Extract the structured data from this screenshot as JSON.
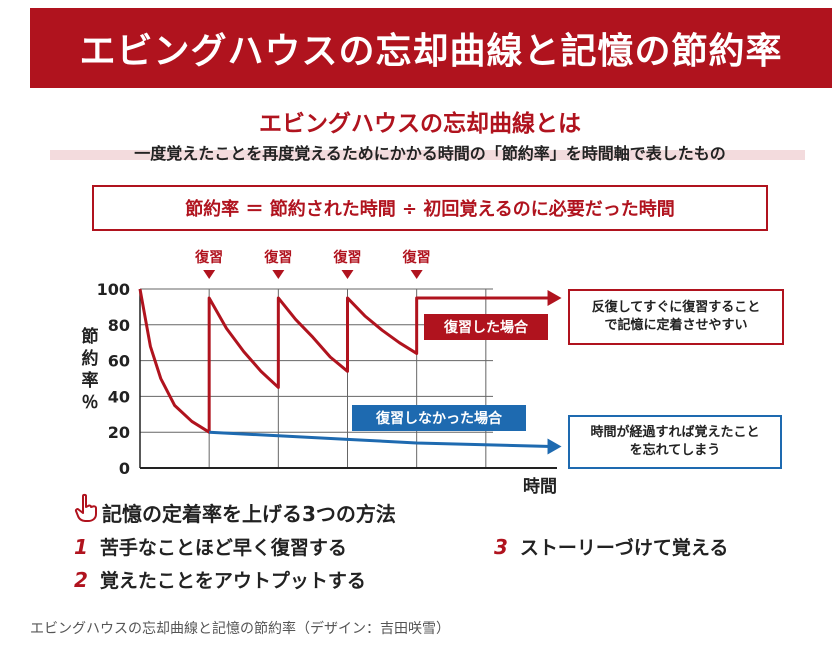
{
  "banner": {
    "title": "エビングハウスの忘却曲線と記憶の節約率"
  },
  "header": {
    "title": "エビングハウスの忘却曲線とは",
    "subtitle": "一度覚えたことを再度覚えるためにかかる時間の「節約率」を時間軸で表したもの"
  },
  "formula": "節約率 ＝ 節約された時間 ÷ 初回覚えるのに必要だった時間",
  "chart_data": {
    "type": "line",
    "ylabel": "節約率％",
    "xlabel": "時間",
    "ylim": [
      0,
      100
    ],
    "yticks": [
      0,
      20,
      40,
      60,
      80,
      100
    ],
    "x_domain": [
      0,
      600
    ],
    "grid": true,
    "review_marker_label": "復習",
    "review_marker_x": [
      100,
      200,
      300,
      400
    ],
    "series": [
      {
        "name": "復習した場合",
        "color": "#b0131e",
        "points": [
          [
            0,
            100
          ],
          [
            15,
            68
          ],
          [
            30,
            50
          ],
          [
            50,
            35
          ],
          [
            75,
            26
          ],
          [
            100,
            20
          ],
          [
            100,
            95
          ],
          [
            125,
            78
          ],
          [
            150,
            65
          ],
          [
            175,
            54
          ],
          [
            200,
            45
          ],
          [
            200,
            95
          ],
          [
            225,
            83
          ],
          [
            250,
            73
          ],
          [
            275,
            62
          ],
          [
            300,
            54
          ],
          [
            300,
            95
          ],
          [
            325,
            85
          ],
          [
            350,
            77
          ],
          [
            375,
            70
          ],
          [
            400,
            64
          ],
          [
            400,
            95
          ],
          [
            595,
            95
          ]
        ]
      },
      {
        "name": "復習しなかった場合",
        "color": "#1e6ab0",
        "points": [
          [
            100,
            20
          ],
          [
            200,
            18
          ],
          [
            300,
            16
          ],
          [
            400,
            14
          ],
          [
            595,
            12
          ]
        ]
      }
    ],
    "annotations": [
      "反復してすぐに復習することで記憶に定着させやすい",
      "時間が経過すれば覚えたことを忘れてしまう"
    ]
  },
  "callouts": {
    "red_line1": "反復してすぐに復習すること",
    "red_line2": "で記憶に定着させやすい",
    "blue_line1": "時間が経過すれば覚えたこと",
    "blue_line2": "を忘れてしまう"
  },
  "methods": {
    "title": "記憶の定着率を上げる3つの方法",
    "items": [
      {
        "num": "1",
        "text": "苦手なことほど早く復習する"
      },
      {
        "num": "2",
        "text": "覚えたことをアウトプットする"
      },
      {
        "num": "3",
        "text": "ストーリーづけて覚える"
      }
    ]
  },
  "caption": "エビングハウスの忘却曲線と記憶の節約率（デザイン：吉田咲雪）",
  "colors": {
    "accent_red": "#b0131e",
    "accent_blue": "#1e6ab0"
  },
  "icons": {
    "methods": "pointing-hand-icon"
  }
}
